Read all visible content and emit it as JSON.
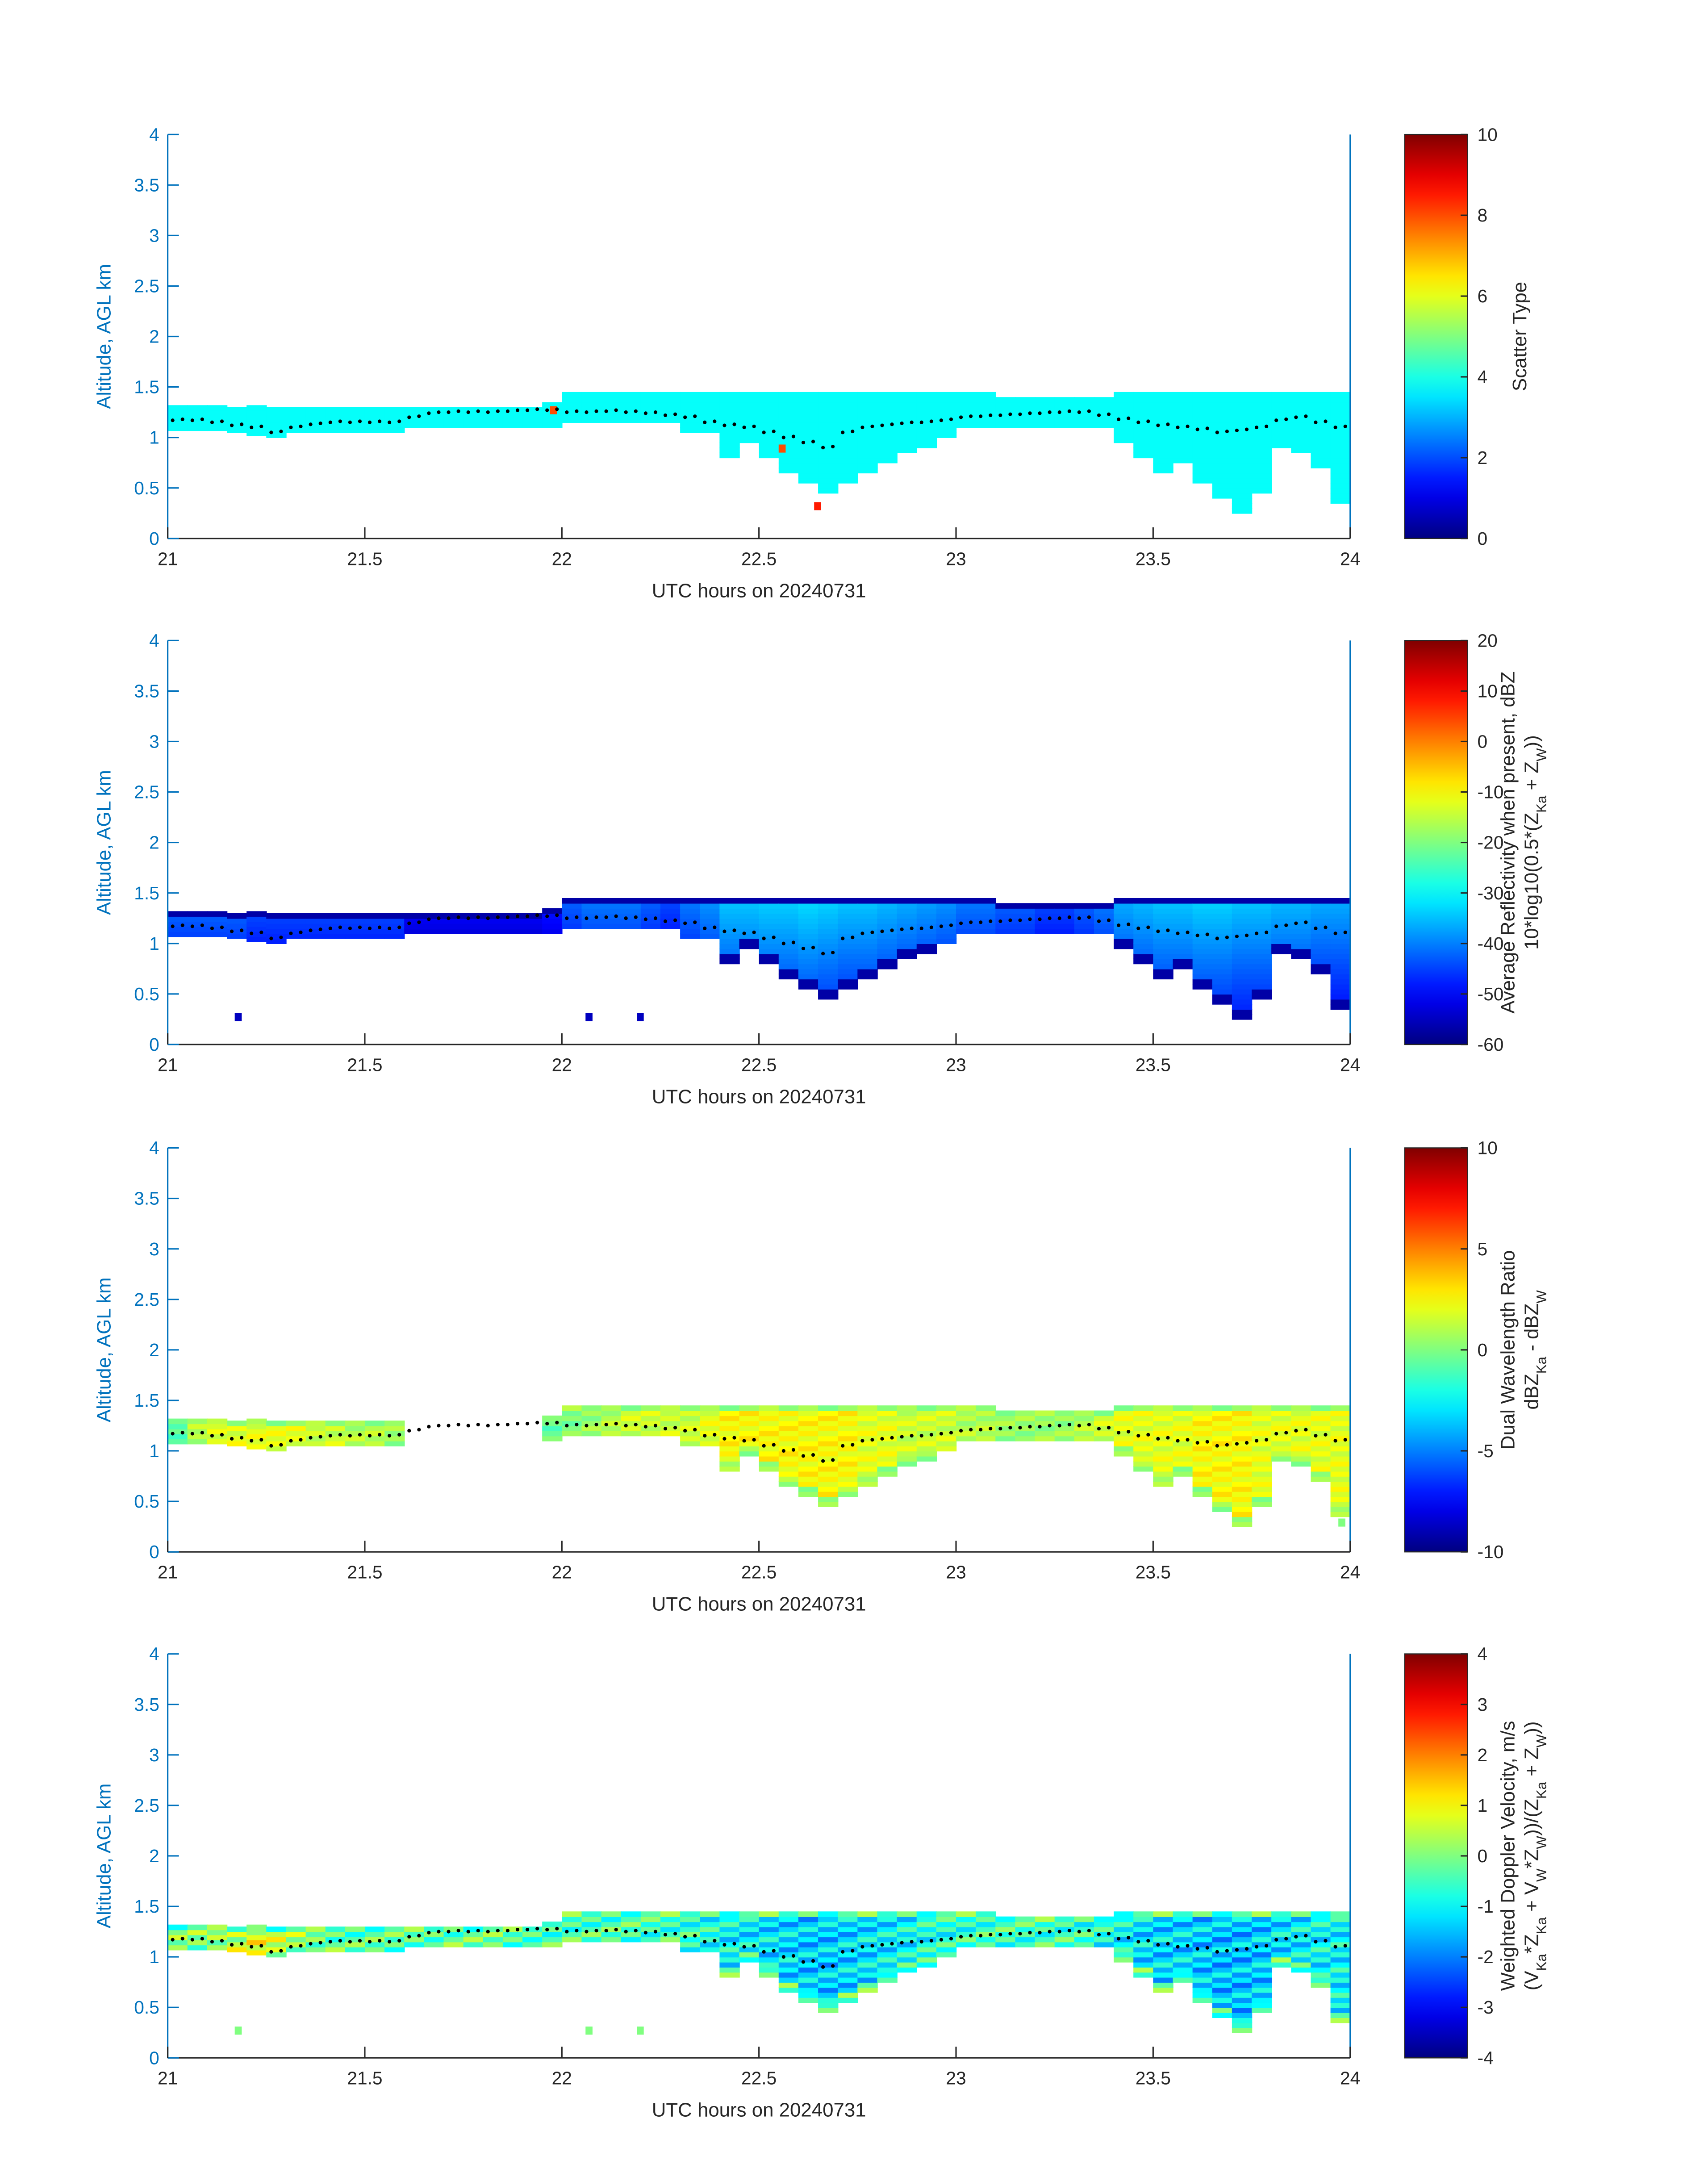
{
  "chart_data": [
    {
      "type": "heatmap",
      "xlabel": "UTC hours on 20240731",
      "ylabel": "Altitude, AGL km",
      "xlim": [
        21,
        24
      ],
      "ylim": [
        0,
        4
      ],
      "xticks": [
        "21",
        "21.5",
        "22",
        "22.5",
        "23",
        "23.5",
        "24"
      ],
      "yticks": [
        "0",
        "0.5",
        "1",
        "1.5",
        "2",
        "2.5",
        "3",
        "3.5",
        "4"
      ],
      "colormap": "jet",
      "colorbar": {
        "label": [
          "Scatter Type"
        ],
        "clim": [
          0,
          10
        ],
        "ticks": [
          "0",
          "2",
          "4",
          "6",
          "8",
          "10"
        ]
      },
      "interior_value": 3.8,
      "edge_value": 3.8,
      "gap_bins": [],
      "isolated_cells": [
        {
          "t": 22.64,
          "alt": 0.3,
          "value": 8.5
        },
        {
          "t": 22.55,
          "alt": 0.87,
          "value": 8
        },
        {
          "t": 21.97,
          "alt": 1.25,
          "value": 8
        }
      ]
    },
    {
      "type": "heatmap",
      "xlabel": "UTC hours on 20240731",
      "ylabel": "Altitude, AGL km",
      "xlim": [
        21,
        24
      ],
      "ylim": [
        0,
        4
      ],
      "xticks": [
        "21",
        "21.5",
        "22",
        "22.5",
        "23",
        "23.5",
        "24"
      ],
      "yticks": [
        "0",
        "0.5",
        "1",
        "1.5",
        "2",
        "2.5",
        "3",
        "3.5",
        "4"
      ],
      "colormap": "jet",
      "colorbar": {
        "label": [
          "Average Reflectivity when present, dBZ",
          "10*log10(0.5*(Z_{Ka} + Z_{W}))"
        ],
        "clim": [
          -60,
          20
        ],
        "ticks": [
          "-60",
          "-50",
          "-40",
          "-30",
          "-20",
          "-10",
          "0",
          "10",
          "20"
        ]
      },
      "interior_value": [
        -42,
        -42,
        -42,
        -42,
        -44,
        -44,
        -44,
        -44,
        -44,
        -44,
        -44,
        -44,
        -50,
        -50,
        -50,
        -50,
        -50,
        -50,
        -50,
        -48,
        -42,
        -40,
        -40,
        -40,
        -42,
        -44,
        -40,
        -38,
        -34,
        -34,
        -33,
        -33,
        -32,
        -33,
        -34,
        -34,
        -35,
        -36,
        -37,
        -38,
        -40,
        -40,
        -42,
        -42,
        -44,
        -44,
        -42,
        -40,
        -36,
        -35,
        -34,
        -34,
        -33,
        -33,
        -34,
        -34,
        -35,
        -35,
        -36,
        -36
      ],
      "edge_value": -57,
      "gap_bins": [],
      "isolated_cells": [
        {
          "t": 21.17,
          "alt": 0.25,
          "value": -55
        },
        {
          "t": 22.06,
          "alt": 0.25,
          "value": -55
        },
        {
          "t": 22.19,
          "alt": 0.25,
          "value": -55
        }
      ]
    },
    {
      "type": "heatmap",
      "xlabel": "UTC hours on 20240731",
      "ylabel": "Altitude, AGL km",
      "xlim": [
        21,
        24
      ],
      "ylim": [
        0,
        4
      ],
      "xticks": [
        "21",
        "21.5",
        "22",
        "22.5",
        "23",
        "23.5",
        "24"
      ],
      "yticks": [
        "0",
        "0.5",
        "1",
        "1.5",
        "2",
        "2.5",
        "3",
        "3.5",
        "4"
      ],
      "colormap": "jet",
      "colorbar": {
        "label": [
          "Dual Wavelength Ratio",
          "dBZ_{Ka} - dBZ_{W}"
        ],
        "clim": [
          -10,
          10
        ],
        "ticks": [
          "-10",
          "-5",
          "0",
          "5",
          "10"
        ]
      },
      "interior_value": [
        -1,
        1,
        2,
        2,
        2,
        2,
        2,
        1.5,
        1.5,
        1,
        1,
        0.5,
        0,
        0,
        0,
        0,
        0,
        0,
        0,
        -0.5,
        0,
        0.5,
        1,
        1.5,
        1.5,
        1.5,
        1.5,
        2,
        2.5,
        2.5,
        2.5,
        2.5,
        2.5,
        2.5,
        2.5,
        2,
        2,
        1.5,
        1.5,
        1.5,
        1,
        1,
        0.5,
        0.5,
        0.5,
        0.5,
        1,
        1.5,
        2,
        2,
        2,
        2,
        2.5,
        2.5,
        2.5,
        2,
        2,
        2,
        2,
        2
      ],
      "edge_value": 0.5,
      "gap_bins": [
        12,
        13,
        14,
        15,
        16,
        17,
        18
      ],
      "isolated_cells": [
        {
          "t": 23.97,
          "alt": 0.27,
          "value": 0
        }
      ]
    },
    {
      "type": "heatmap",
      "xlabel": "UTC hours on 20240731",
      "ylabel": "Altitude, AGL km",
      "xlim": [
        21,
        24
      ],
      "ylim": [
        0,
        4
      ],
      "xticks": [
        "21",
        "21.5",
        "22",
        "22.5",
        "23",
        "23.5",
        "24"
      ],
      "yticks": [
        "0",
        "0.5",
        "1",
        "1.5",
        "2",
        "2.5",
        "3",
        "3.5",
        "4"
      ],
      "colormap": "jet",
      "colorbar": {
        "label": [
          "Weighted Doppler Velocity, m/s",
          "(V_{Ka}*Z_{Ka} + V_{W}*Z_{W}))/(Z_{Ka} + Z_{W}))"
        ],
        "clim": [
          -4,
          4
        ],
        "ticks": [
          "-4",
          "-3",
          "-2",
          "-1",
          "0",
          "1",
          "2",
          "3",
          "4"
        ]
      },
      "interior_value": [
        0,
        0,
        0.3,
        0.5,
        0.8,
        0.5,
        0.2,
        0,
        -0.2,
        -0.3,
        -0.3,
        -0.3,
        -0.2,
        -0.2,
        -0.2,
        -0.2,
        -0.2,
        -0.3,
        -0.3,
        -0.4,
        -0.4,
        -0.4,
        -0.4,
        -0.4,
        -0.5,
        -0.5,
        -0.6,
        -0.8,
        -1,
        -1.1,
        -1.2,
        -1.3,
        -1.4,
        -1.4,
        -1.3,
        -1.2,
        -1.1,
        -1,
        -0.8,
        -0.7,
        -0.6,
        -0.5,
        -0.5,
        -0.5,
        -0.5,
        -0.5,
        -0.6,
        -0.8,
        -1,
        -1.2,
        -1.3,
        -1.3,
        -1.4,
        -1.5,
        -1.5,
        -1.4,
        -1.2,
        -1.1,
        -1,
        -1
      ],
      "edge_value": -0.3,
      "gap_bins": [],
      "isolated_cells": [
        {
          "t": 21.17,
          "alt": 0.25,
          "value": 0
        },
        {
          "t": 22.06,
          "alt": 0.25,
          "value": 0
        },
        {
          "t": 22.19,
          "alt": 0.25,
          "value": 0
        }
      ]
    }
  ],
  "cloud_extent": {
    "bin_start_hours": [
      21,
      21.05,
      21.1,
      21.15,
      21.2,
      21.25,
      21.3,
      21.35,
      21.4,
      21.45,
      21.5,
      21.55,
      21.6,
      21.65,
      21.7,
      21.75,
      21.8,
      21.85,
      21.9,
      21.95,
      22,
      22.05,
      22.1,
      22.15,
      22.2,
      22.25,
      22.3,
      22.35,
      22.4,
      22.45,
      22.5,
      22.55,
      22.6,
      22.65,
      22.7,
      22.75,
      22.8,
      22.85,
      22.9,
      22.95,
      23,
      23.05,
      23.1,
      23.15,
      23.2,
      23.25,
      23.3,
      23.35,
      23.4,
      23.45,
      23.5,
      23.55,
      23.6,
      23.65,
      23.7,
      23.75,
      23.8,
      23.85,
      23.9,
      23.95
    ],
    "bin_width_hours": 0.05,
    "top_km": [
      1.3,
      1.3,
      1.3,
      1.3,
      1.3,
      1.3,
      1.3,
      1.3,
      1.3,
      1.3,
      1.3,
      1.3,
      1.3,
      1.3,
      1.3,
      1.3,
      1.3,
      1.3,
      1.3,
      1.35,
      1.43,
      1.43,
      1.43,
      1.43,
      1.43,
      1.43,
      1.43,
      1.43,
      1.43,
      1.43,
      1.45,
      1.45,
      1.45,
      1.43,
      1.43,
      1.43,
      1.43,
      1.43,
      1.43,
      1.43,
      1.43,
      1.43,
      1.4,
      1.4,
      1.4,
      1.4,
      1.4,
      1.4,
      1.43,
      1.43,
      1.43,
      1.43,
      1.43,
      1.43,
      1.43,
      1.43,
      1.43,
      1.43,
      1.43,
      1.43
    ],
    "base_km": [
      1.07,
      1.07,
      1.07,
      1.05,
      1.02,
      1.0,
      1.05,
      1.05,
      1.05,
      1.05,
      1.05,
      1.05,
      1.1,
      1.1,
      1.1,
      1.1,
      1.1,
      1.1,
      1.1,
      1.1,
      1.15,
      1.15,
      1.15,
      1.15,
      1.15,
      1.15,
      1.05,
      1.05,
      0.8,
      0.95,
      0.8,
      0.65,
      0.55,
      0.45,
      0.55,
      0.65,
      0.75,
      0.85,
      0.9,
      1.0,
      1.1,
      1.1,
      1.1,
      1.1,
      1.1,
      1.1,
      1.1,
      1.1,
      0.95,
      0.8,
      0.65,
      0.75,
      0.55,
      0.4,
      0.25,
      0.45,
      0.9,
      0.85,
      0.7,
      0.35
    ],
    "cloud_base_dots_km": [
      1.17,
      1.17,
      1.15,
      1.12,
      1.1,
      1.05,
      1.1,
      1.13,
      1.15,
      1.15,
      1.15,
      1.15,
      1.2,
      1.24,
      1.25,
      1.25,
      1.25,
      1.26,
      1.27,
      1.27,
      1.25,
      1.25,
      1.26,
      1.25,
      1.24,
      1.22,
      1.2,
      1.15,
      1.12,
      1.1,
      1.05,
      1.0,
      0.95,
      0.9,
      1.05,
      1.1,
      1.12,
      1.14,
      1.15,
      1.17,
      1.2,
      1.21,
      1.22,
      1.23,
      1.24,
      1.25,
      1.25,
      1.22,
      1.18,
      1.15,
      1.12,
      1.1,
      1.08,
      1.05,
      1.07,
      1.1,
      1.17,
      1.2,
      1.15,
      1.1
    ]
  }
}
